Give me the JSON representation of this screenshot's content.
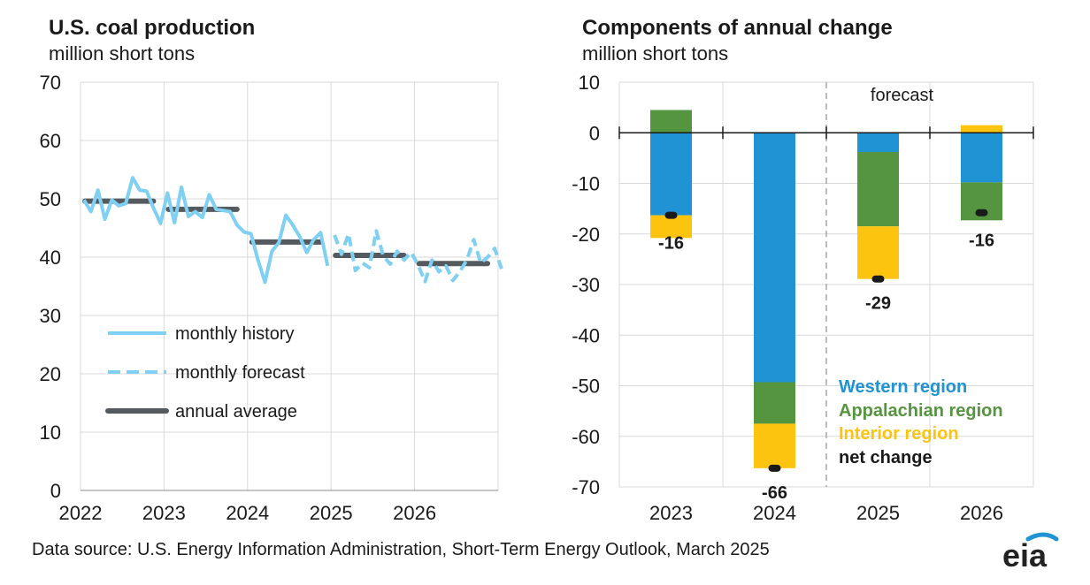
{
  "left_chart": {
    "title": "U.S. coal production",
    "subtitle": "million short tons"
  },
  "right_chart": {
    "title": "Components of annual change",
    "subtitle": "million short tons",
    "forecast_label": "forecast"
  },
  "source": "Data source: U.S. Energy Information Administration, Short-Term Energy Outlook, March 2025",
  "logo_text": "eia",
  "colors": {
    "history": "#7fd0f2",
    "average": "#555a5f",
    "western": "#1f93d3",
    "appalachian": "#55953f",
    "interior": "#fdc40f",
    "net": "#1a1a1a",
    "grid": "#d9d9d9"
  },
  "chart_data": [
    {
      "type": "line",
      "title": "U.S. coal production",
      "ylabel": "million short tons",
      "ylim": [
        0,
        70
      ],
      "yticks": [
        0,
        10,
        20,
        30,
        40,
        50,
        60,
        70
      ],
      "xlim": [
        2022,
        2027
      ],
      "xticks": [
        "2022",
        "2023",
        "2024",
        "2025",
        "2026"
      ],
      "grid": true,
      "legend_position": "lower-left",
      "series": [
        {
          "name": "monthly history",
          "style": "solid",
          "x_start": "2022-01",
          "values": [
            49.8,
            47.8,
            51.5,
            46.5,
            49.8,
            48.8,
            49.2,
            53.6,
            51.5,
            51.3,
            48.4,
            45.8,
            51.0,
            45.9,
            52.0,
            47.0,
            47.8,
            46.8,
            50.7,
            48.2,
            48.0,
            47.8,
            45.5,
            44.3,
            44.0,
            39.5,
            35.7,
            41.0,
            42.5,
            47.2,
            45.5,
            43.5,
            40.8,
            43.0,
            44.2,
            38.5
          ]
        },
        {
          "name": "monthly forecast",
          "style": "dashed",
          "x_start": "2025-01",
          "values": [
            43.8,
            40.5,
            44.0,
            37.7,
            39.0,
            38.2,
            44.5,
            40.2,
            38.8,
            41.0,
            39.5,
            40.8,
            38.7,
            35.8,
            39.5,
            37.5,
            38.5,
            36.0,
            37.5,
            39.5,
            43.0,
            39.0,
            40.0,
            41.5,
            38.0
          ]
        },
        {
          "name": "annual average",
          "style": "thick",
          "years": [
            2022,
            2023,
            2024,
            2025,
            2026
          ],
          "values": [
            49.6,
            48.2,
            42.6,
            40.3,
            38.9
          ]
        }
      ]
    },
    {
      "type": "bar",
      "stacked": true,
      "title": "Components of annual change",
      "ylabel": "million short tons",
      "ylim": [
        -70,
        10
      ],
      "yticks": [
        10,
        0,
        -10,
        -20,
        -30,
        -40,
        -50,
        -60,
        -70
      ],
      "categories": [
        "2023",
        "2024",
        "2025",
        "2026"
      ],
      "forecast_from": "2025",
      "legend_position": "lower-right",
      "series": [
        {
          "name": "Western region",
          "values": [
            -16.3,
            -49.3,
            -3.8,
            -9.8
          ]
        },
        {
          "name": "Appalachian region",
          "values": [
            4.5,
            -8.2,
            -14.7,
            -7.5
          ]
        },
        {
          "name": "Interior region",
          "values": [
            -4.5,
            -8.8,
            -10.4,
            1.5
          ]
        }
      ],
      "net_change": {
        "name": "net change",
        "values": [
          -16.3,
          -66.3,
          -28.9,
          -15.8
        ],
        "labels": [
          "-16",
          "-66",
          "-29",
          "-16"
        ]
      }
    }
  ]
}
